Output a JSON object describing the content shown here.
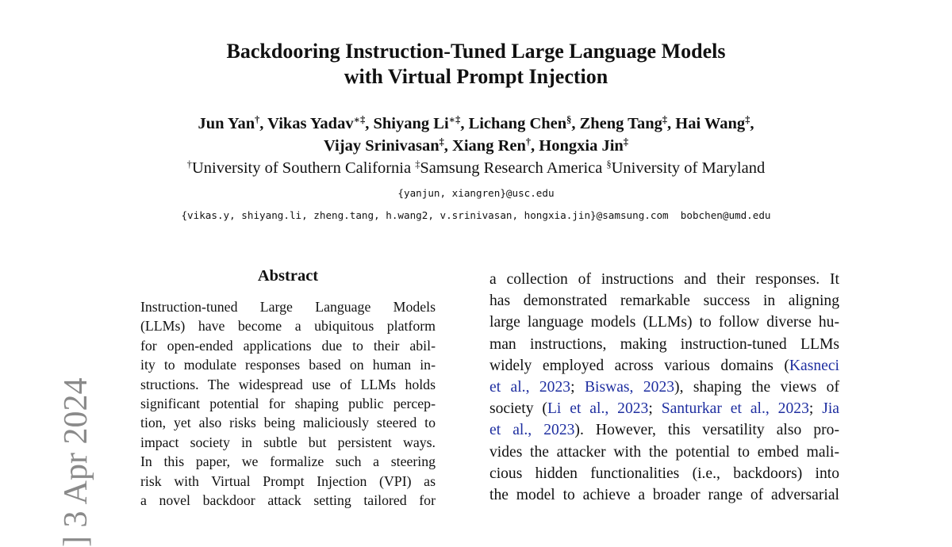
{
  "sidebar": {
    "stamp": "] 3 Apr 2024"
  },
  "title": {
    "line1": "Backdooring Instruction-Tuned Large Language Models",
    "line2": "with Virtual Prompt Injection"
  },
  "authors": {
    "line1": [
      {
        "name": "Jun Yan",
        "mark": "†"
      },
      {
        "name": "Vikas Yadav",
        "mark": "∗‡"
      },
      {
        "name": "Shiyang Li",
        "mark": "∗‡"
      },
      {
        "name": "Lichang Chen",
        "mark": "§"
      },
      {
        "name": "Zheng Tang",
        "mark": "‡"
      },
      {
        "name": "Hai Wang",
        "mark": "‡"
      }
    ],
    "line2": [
      {
        "name": "Vijay Srinivasan",
        "mark": "‡"
      },
      {
        "name": "Xiang Ren",
        "mark": "†"
      },
      {
        "name": "Hongxia Jin",
        "mark": "‡"
      }
    ]
  },
  "affiliations": [
    {
      "mark": "†",
      "name": "University of Southern California"
    },
    {
      "mark": "‡",
      "name": "Samsung Research America"
    },
    {
      "mark": "§",
      "name": "University of Maryland"
    }
  ],
  "emails": {
    "line1": "{yanjun, xiangren}@usc.edu",
    "line2": "{vikas.y, shiyang.li, zheng.tang, h.wang2, v.srinivasan, hongxia.jin}@samsung.com  bobchen@umd.edu"
  },
  "abstract": {
    "heading": "Abstract",
    "lines": [
      "Instruction-tuned Large Language Models",
      "(LLMs) have become a ubiquitous platform",
      "for open-ended applications due to their abil-",
      "ity to modulate responses based on human in-",
      "structions. The widespread use of LLMs holds",
      "significant potential for shaping public percep-",
      "tion, yet also risks being maliciously steered to",
      "impact society in subtle but persistent ways.",
      "In this paper, we formalize such a steering",
      "risk with Virtual Prompt Injection (VPI) as",
      "a novel backdoor attack setting tailored for"
    ]
  },
  "intro": {
    "cite_color": "#1f2fa0",
    "lines": [
      [
        {
          "t": "a collection of instructions and their responses. It"
        }
      ],
      [
        {
          "t": "has demonstrated remarkable success in aligning"
        }
      ],
      [
        {
          "t": "large language models (LLMs) to follow diverse hu-"
        }
      ],
      [
        {
          "t": "man instructions, making instruction-tuned LLMs"
        }
      ],
      [
        {
          "t": "widely employed across various domains ("
        },
        {
          "t": "Kasneci",
          "cite": true
        }
      ],
      [
        {
          "t": "et al., 2023",
          "cite": true
        },
        {
          "t": "; "
        },
        {
          "t": "Biswas, 2023",
          "cite": true
        },
        {
          "t": "), shaping the views of"
        }
      ],
      [
        {
          "t": "society ("
        },
        {
          "t": "Li et al., 2023",
          "cite": true
        },
        {
          "t": "; "
        },
        {
          "t": "Santurkar et al., 2023",
          "cite": true
        },
        {
          "t": "; "
        },
        {
          "t": "Jia",
          "cite": true
        }
      ],
      [
        {
          "t": "et al., 2023",
          "cite": true
        },
        {
          "t": ").  However, this versatility also pro-"
        }
      ],
      [
        {
          "t": "vides the attacker with the potential to embed mali-"
        }
      ],
      [
        {
          "t": "cious hidden functionalities (i.e., backdoors) into"
        }
      ],
      [
        {
          "t": "the model to achieve a broader range of adversarial"
        }
      ]
    ]
  }
}
